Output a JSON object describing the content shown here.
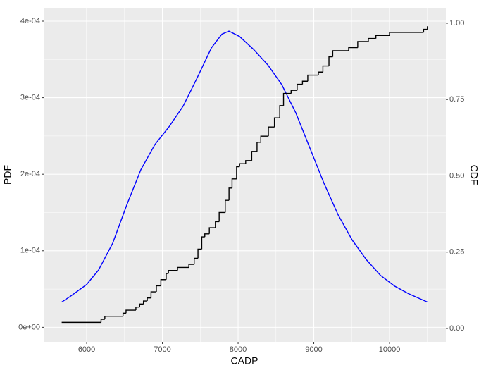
{
  "chart_data": {
    "type": "line",
    "xlabel": "CADP",
    "ylabel": "PDF",
    "y2label": "CDF",
    "xlim": [
      5432,
      10744
    ],
    "xticks": [
      6000,
      7000,
      8000,
      9000,
      10000
    ],
    "ylim": [
      -1.9e-05,
      0.0004175
    ],
    "yticks": [
      {
        "value": 0,
        "label": "0e+00"
      },
      {
        "value": 0.0001,
        "label": "1e-04"
      },
      {
        "value": 0.0002,
        "label": "2e-04"
      },
      {
        "value": 0.0003,
        "label": "3e-04"
      },
      {
        "value": 0.0004,
        "label": "4e-04"
      }
    ],
    "y2lim": [
      -0.0438,
      1.0507
    ],
    "y2ticks": [
      {
        "value": 0,
        "label": "0.00"
      },
      {
        "value": 0.25,
        "label": "0.25"
      },
      {
        "value": 0.5,
        "label": "0.50"
      },
      {
        "value": 0.75,
        "label": "0.75"
      },
      {
        "value": 1,
        "label": "1.00"
      }
    ],
    "grid": true,
    "background": "#ebebeb",
    "series": [
      {
        "name": "PDF",
        "color": "#0000ff",
        "step": false,
        "x": [
          5670,
          5786,
          6000,
          6158,
          6344,
          6530,
          6716,
          6902,
          7088,
          7274,
          7460,
          7647,
          7786,
          7879,
          8019,
          8205,
          8391,
          8577,
          8763,
          8949,
          9135,
          9321,
          9507,
          9693,
          9879,
          10065,
          10251,
          10500
        ],
        "values": [
          3.3e-05,
          4.06e-05,
          5.6e-05,
          7.5e-05,
          0.00011,
          0.00016,
          0.000206,
          0.000239,
          0.000262,
          0.000289,
          0.000326,
          0.000365,
          0.000383,
          0.000387,
          0.00038,
          0.000363,
          0.000343,
          0.000317,
          0.00028,
          0.000234,
          0.000188,
          0.000147,
          0.000114,
          8.85e-05,
          6.8e-05,
          5.4e-05,
          4.4e-05,
          3.3e-05
        ]
      },
      {
        "name": "CDF",
        "color": "#000000",
        "axis": "y2",
        "step": true,
        "x": [
          5670,
          6190,
          6240,
          6480,
          6520,
          6650,
          6700,
          6750,
          6800,
          6850,
          6920,
          6980,
          7050,
          7080,
          7200,
          7350,
          7420,
          7470,
          7520,
          7560,
          7620,
          7700,
          7750,
          7830,
          7880,
          7920,
          7980,
          8020,
          8100,
          8180,
          8250,
          8300,
          8400,
          8480,
          8550,
          8600,
          8700,
          8780,
          8850,
          8920,
          9060,
          9120,
          9200,
          9250,
          9460,
          9580,
          9720,
          9820,
          10000,
          10450,
          10500
        ],
        "values": [
          0.02,
          0.03,
          0.04,
          0.05,
          0.06,
          0.07,
          0.08,
          0.09,
          0.1,
          0.12,
          0.14,
          0.16,
          0.18,
          0.19,
          0.2,
          0.21,
          0.23,
          0.26,
          0.3,
          0.31,
          0.33,
          0.35,
          0.38,
          0.42,
          0.46,
          0.49,
          0.53,
          0.54,
          0.55,
          0.58,
          0.61,
          0.63,
          0.66,
          0.69,
          0.73,
          0.77,
          0.78,
          0.8,
          0.81,
          0.83,
          0.84,
          0.86,
          0.89,
          0.91,
          0.92,
          0.94,
          0.95,
          0.96,
          0.97,
          0.98,
          0.99
        ]
      }
    ]
  }
}
